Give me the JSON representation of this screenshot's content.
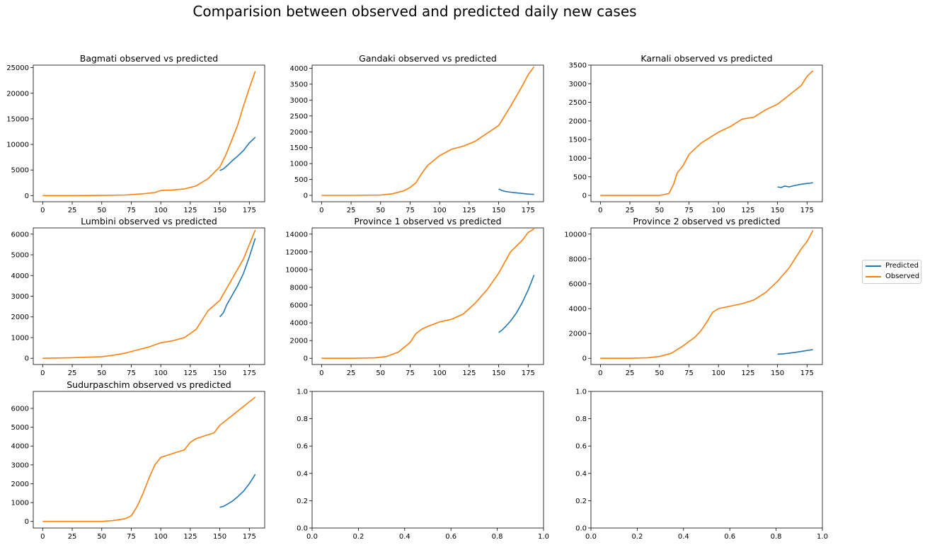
{
  "suptitle": "Comparision between observed and predicted daily new cases",
  "legend": [
    {
      "name": "Predicted",
      "color": "#1f77b4"
    },
    {
      "name": "Observed",
      "color": "#ff7f0e"
    }
  ],
  "chart_data": [
    {
      "type": "line",
      "title": "Bagmati observed vs predicted",
      "xlim": [
        -8,
        188
      ],
      "ylim": [
        -1200,
        25500
      ],
      "xticks": [
        0,
        25,
        50,
        75,
        100,
        125,
        150,
        175
      ],
      "yticks": [
        0,
        5000,
        10000,
        15000,
        20000,
        25000
      ],
      "series": [
        {
          "name": "Predicted",
          "color": "#1f77b4",
          "x": [
            150,
            153,
            156,
            160,
            165,
            170,
            175,
            180
          ],
          "y": [
            4900,
            5200,
            5800,
            6700,
            7700,
            8800,
            10300,
            11400
          ]
        },
        {
          "name": "Observed",
          "color": "#ff7f0e",
          "x": [
            0,
            25,
            50,
            70,
            85,
            95,
            100,
            110,
            120,
            130,
            140,
            150,
            155,
            160,
            165,
            170,
            175,
            180
          ],
          "y": [
            0,
            0,
            30,
            120,
            350,
            600,
            1000,
            1100,
            1300,
            1900,
            3300,
            5600,
            7900,
            10800,
            13700,
            17500,
            21000,
            24300
          ]
        }
      ]
    },
    {
      "type": "line",
      "title": "Gandaki observed vs predicted",
      "xlim": [
        -8,
        188
      ],
      "ylim": [
        -200,
        4100
      ],
      "xticks": [
        0,
        25,
        50,
        75,
        100,
        125,
        150,
        175
      ],
      "yticks": [
        0,
        500,
        1000,
        1500,
        2000,
        2500,
        3000,
        3500,
        4000
      ],
      "series": [
        {
          "name": "Predicted",
          "color": "#1f77b4",
          "x": [
            150,
            153,
            156,
            160,
            165,
            170,
            175,
            180
          ],
          "y": [
            200,
            150,
            120,
            100,
            80,
            60,
            40,
            30
          ]
        },
        {
          "name": "Observed",
          "color": "#ff7f0e",
          "x": [
            0,
            25,
            50,
            60,
            70,
            75,
            80,
            85,
            90,
            95,
            100,
            110,
            120,
            130,
            140,
            150,
            160,
            170,
            175,
            180
          ],
          "y": [
            0,
            0,
            10,
            50,
            150,
            250,
            400,
            700,
            950,
            1100,
            1250,
            1450,
            1550,
            1700,
            1950,
            2200,
            2800,
            3450,
            3800,
            4050
          ]
        }
      ]
    },
    {
      "type": "line",
      "title": "Karnali observed vs predicted",
      "xlim": [
        -8,
        188
      ],
      "ylim": [
        -170,
        3500
      ],
      "xticks": [
        0,
        25,
        50,
        75,
        100,
        125,
        150,
        175
      ],
      "yticks": [
        0,
        500,
        1000,
        1500,
        2000,
        2500,
        3000,
        3500
      ],
      "series": [
        {
          "name": "Predicted",
          "color": "#1f77b4",
          "x": [
            150,
            153,
            156,
            160,
            165,
            170,
            175,
            180
          ],
          "y": [
            230,
            210,
            250,
            230,
            270,
            300,
            320,
            340
          ]
        },
        {
          "name": "Observed",
          "color": "#ff7f0e",
          "x": [
            0,
            25,
            50,
            58,
            62,
            65,
            70,
            75,
            80,
            85,
            90,
            100,
            110,
            120,
            130,
            140,
            150,
            160,
            170,
            175,
            180
          ],
          "y": [
            0,
            0,
            0,
            50,
            300,
            600,
            800,
            1100,
            1250,
            1400,
            1500,
            1700,
            1850,
            2050,
            2100,
            2300,
            2450,
            2700,
            2950,
            3200,
            3350
          ]
        }
      ]
    },
    {
      "type": "line",
      "title": "Lumbini observed vs predicted",
      "xlim": [
        -8,
        188
      ],
      "ylim": [
        -300,
        6300
      ],
      "xticks": [
        0,
        25,
        50,
        75,
        100,
        125,
        150,
        175
      ],
      "yticks": [
        0,
        1000,
        2000,
        3000,
        4000,
        5000,
        6000
      ],
      "series": [
        {
          "name": "Predicted",
          "color": "#1f77b4",
          "x": [
            150,
            153,
            156,
            160,
            165,
            170,
            175,
            180
          ],
          "y": [
            2000,
            2200,
            2600,
            3000,
            3500,
            4100,
            4900,
            5800
          ]
        },
        {
          "name": "Observed",
          "color": "#ff7f0e",
          "x": [
            0,
            25,
            50,
            60,
            70,
            80,
            90,
            100,
            110,
            120,
            130,
            140,
            150,
            160,
            170,
            175,
            180
          ],
          "y": [
            0,
            30,
            80,
            150,
            250,
            400,
            550,
            750,
            850,
            1000,
            1400,
            2300,
            2800,
            3800,
            4800,
            5500,
            6200
          ]
        }
      ]
    },
    {
      "type": "line",
      "title": "Province 1 observed vs predicted",
      "xlim": [
        -8,
        188
      ],
      "ylim": [
        -700,
        14700
      ],
      "xticks": [
        0,
        25,
        50,
        75,
        100,
        125,
        150,
        175
      ],
      "yticks": [
        0,
        2000,
        4000,
        6000,
        8000,
        10000,
        12000,
        14000
      ],
      "series": [
        {
          "name": "Predicted",
          "color": "#1f77b4",
          "x": [
            150,
            153,
            156,
            160,
            165,
            170,
            175,
            180
          ],
          "y": [
            2900,
            3200,
            3600,
            4200,
            5100,
            6300,
            7700,
            9400
          ]
        },
        {
          "name": "Observed",
          "color": "#ff7f0e",
          "x": [
            0,
            25,
            45,
            55,
            65,
            75,
            80,
            85,
            90,
            100,
            110,
            120,
            130,
            140,
            150,
            160,
            170,
            175,
            180
          ],
          "y": [
            0,
            0,
            50,
            200,
            700,
            1800,
            2800,
            3300,
            3600,
            4100,
            4400,
            5000,
            6200,
            7700,
            9600,
            12000,
            13300,
            14200,
            14600
          ]
        }
      ]
    },
    {
      "type": "line",
      "title": "Province 2 observed vs predicted",
      "xlim": [
        -8,
        188
      ],
      "ylim": [
        -500,
        10500
      ],
      "xticks": [
        0,
        25,
        50,
        75,
        100,
        125,
        150,
        175
      ],
      "yticks": [
        0,
        2000,
        4000,
        6000,
        8000,
        10000
      ],
      "series": [
        {
          "name": "Predicted",
          "color": "#1f77b4",
          "x": [
            150,
            155,
            160,
            165,
            170,
            175,
            180
          ],
          "y": [
            330,
            360,
            420,
            480,
            550,
            630,
            700
          ]
        },
        {
          "name": "Observed",
          "color": "#ff7f0e",
          "x": [
            0,
            25,
            40,
            50,
            60,
            70,
            80,
            85,
            90,
            95,
            100,
            110,
            120,
            130,
            140,
            150,
            160,
            170,
            175,
            180
          ],
          "y": [
            0,
            0,
            50,
            150,
            400,
            1000,
            1700,
            2200,
            2900,
            3700,
            4000,
            4200,
            4400,
            4700,
            5300,
            6200,
            7300,
            8800,
            9400,
            10300
          ]
        }
      ]
    },
    {
      "type": "line",
      "title": "Sudurpaschim observed vs predicted",
      "xlim": [
        -8,
        188
      ],
      "ylim": [
        -350,
        6900
      ],
      "xticks": [
        0,
        25,
        50,
        75,
        100,
        125,
        150,
        175
      ],
      "yticks": [
        0,
        1000,
        2000,
        3000,
        4000,
        5000,
        6000
      ],
      "series": [
        {
          "name": "Predicted",
          "color": "#1f77b4",
          "x": [
            150,
            153,
            156,
            160,
            165,
            170,
            175,
            180
          ],
          "y": [
            750,
            800,
            900,
            1050,
            1300,
            1600,
            2000,
            2500
          ]
        },
        {
          "name": "Observed",
          "color": "#ff7f0e",
          "x": [
            0,
            25,
            50,
            60,
            70,
            75,
            80,
            85,
            90,
            95,
            100,
            110,
            120,
            125,
            130,
            140,
            145,
            150,
            160,
            170,
            180
          ],
          "y": [
            0,
            0,
            0,
            50,
            150,
            300,
            800,
            1500,
            2300,
            3000,
            3400,
            3600,
            3800,
            4200,
            4400,
            4600,
            4700,
            5100,
            5600,
            6100,
            6600
          ]
        }
      ]
    },
    {
      "type": "line",
      "title": "",
      "xlim": [
        0,
        1
      ],
      "ylim": [
        0,
        1
      ],
      "xticks": [
        0.0,
        0.2,
        0.4,
        0.6,
        0.8,
        1.0
      ],
      "yticks": [
        0.0,
        0.2,
        0.4,
        0.6,
        0.8,
        1.0
      ],
      "xtick_labels": [
        "0.0",
        "0.2",
        "0.4",
        "0.6",
        "0.8",
        "1.0"
      ],
      "ytick_labels": [
        "0.0",
        "0.2",
        "0.4",
        "0.6",
        "0.8",
        "1.0"
      ],
      "series": []
    },
    {
      "type": "line",
      "title": "",
      "xlim": [
        0,
        1
      ],
      "ylim": [
        0,
        1
      ],
      "xticks": [
        0.0,
        0.2,
        0.4,
        0.6,
        0.8,
        1.0
      ],
      "yticks": [
        0.0,
        0.2,
        0.4,
        0.6,
        0.8,
        1.0
      ],
      "xtick_labels": [
        "0.0",
        "0.2",
        "0.4",
        "0.6",
        "0.8",
        "1.0"
      ],
      "ytick_labels": [
        "0.0",
        "0.2",
        "0.4",
        "0.6",
        "0.8",
        "1.0"
      ],
      "series": []
    }
  ]
}
